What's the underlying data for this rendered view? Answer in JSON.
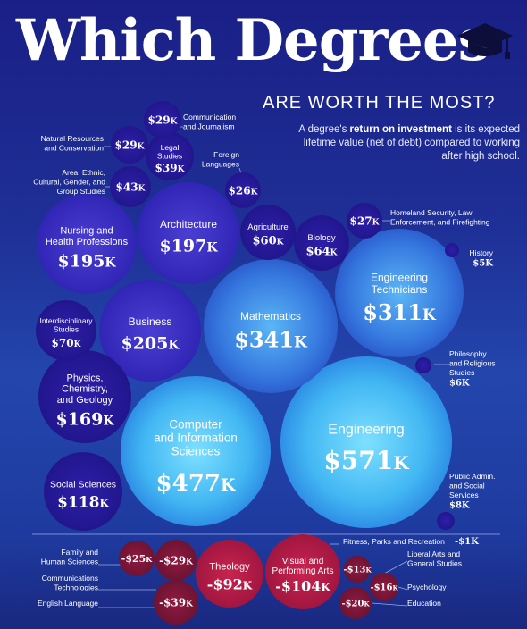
{
  "title": "Which Degrees",
  "subtitle": "ARE WORTH THE MOST?",
  "description": {
    "before": "A degree's ",
    "bold": "return on investment",
    "after": " is its expected lifetime value (net of debt) compared to working after high school."
  },
  "icons": {
    "cap": "graduation-cap-icon"
  },
  "colors": {
    "positive_small": "#2a1da0",
    "positive_mid": "#3b2fc2",
    "positive_large": "#3a7de8",
    "positive_largest": "#49c3f5",
    "negative": "#b51c45",
    "negative_small": "#7a1738",
    "background": "#1e3a9f"
  },
  "chart_data": {
    "type": "bubble",
    "title": "Which Degrees Are Worth the Most?",
    "unit": "$K",
    "items": [
      {
        "name": "Engineering",
        "value": 571,
        "label": "$571K"
      },
      {
        "name": "Computer and Information Sciences",
        "value": 477,
        "label": "$477K"
      },
      {
        "name": "Mathematics",
        "value": 341,
        "label": "$341K"
      },
      {
        "name": "Engineering Technicians",
        "value": 311,
        "label": "$311K"
      },
      {
        "name": "Business",
        "value": 205,
        "label": "$205K"
      },
      {
        "name": "Architecture",
        "value": 197,
        "label": "$197K"
      },
      {
        "name": "Nursing and Health Professions",
        "value": 195,
        "label": "$195K"
      },
      {
        "name": "Physics, Chemistry, and Geology",
        "value": 169,
        "label": "$169K"
      },
      {
        "name": "Social Sciences",
        "value": 118,
        "label": "$118K"
      },
      {
        "name": "Interdisciplinary Studies",
        "value": 70,
        "label": "$70K"
      },
      {
        "name": "Biology",
        "value": 64,
        "label": "$64K"
      },
      {
        "name": "Agriculture",
        "value": 60,
        "label": "$60K"
      },
      {
        "name": "Area, Ethnic, Cultural, Gender, and Group Studies",
        "value": 43,
        "label": "$43K"
      },
      {
        "name": "Legal Studies",
        "value": 39,
        "label": "$39K"
      },
      {
        "name": "Communication and Journalism",
        "value": 29,
        "label": "$29K"
      },
      {
        "name": "Natural Resources and Conservation",
        "value": 29,
        "label": "$29K"
      },
      {
        "name": "Homeland Security, Law Enforcement, and Firefighting",
        "value": 27,
        "label": "$27K"
      },
      {
        "name": "Foreign Languages",
        "value": 26,
        "label": "$26K"
      },
      {
        "name": "Public Admin. and Social Services",
        "value": 8,
        "label": "$8K"
      },
      {
        "name": "Philosophy and Religious Studies",
        "value": 6,
        "label": "$6K"
      },
      {
        "name": "History",
        "value": 5,
        "label": "$5K"
      },
      {
        "name": "Fitness, Parks and Recreation",
        "value": -1,
        "label": "-$1K"
      },
      {
        "name": "Liberal Arts and General Studies",
        "value": -13,
        "label": "-$13K"
      },
      {
        "name": "Psychology",
        "value": -16,
        "label": "-$16K"
      },
      {
        "name": "Education",
        "value": -20,
        "label": "-$20K"
      },
      {
        "name": "Family and Human Sciences",
        "value": -25,
        "label": "-$25K"
      },
      {
        "name": "Communications Technologies",
        "value": -29,
        "label": "-$29K"
      },
      {
        "name": "English Language",
        "value": -39,
        "label": "-$39K"
      },
      {
        "name": "Theology",
        "value": -92,
        "label": "-$92K"
      },
      {
        "name": "Visual and Performing Arts",
        "value": -104,
        "label": "-$104K"
      }
    ]
  }
}
